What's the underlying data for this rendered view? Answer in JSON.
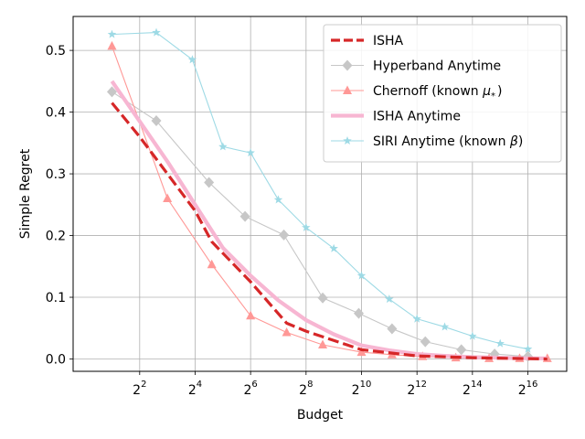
{
  "chart_data": {
    "type": "line",
    "xlabel": "Budget",
    "ylabel": "Simple Regret",
    "xscale": "log2",
    "xlim_log2": [
      -0.4,
      17.4
    ],
    "ylim": [
      -0.02,
      0.555
    ],
    "grid": true,
    "legend_position": "top-right",
    "x_ticks": [
      {
        "exp": 2,
        "base": "2",
        "sup": "2"
      },
      {
        "exp": 4,
        "base": "2",
        "sup": "4"
      },
      {
        "exp": 6,
        "base": "2",
        "sup": "6"
      },
      {
        "exp": 8,
        "base": "2",
        "sup": "8"
      },
      {
        "exp": 10,
        "base": "2",
        "sup": "10"
      },
      {
        "exp": 12,
        "base": "2",
        "sup": "12"
      },
      {
        "exp": 14,
        "base": "2",
        "sup": "14"
      },
      {
        "exp": 16,
        "base": "2",
        "sup": "16"
      }
    ],
    "y_ticks": [
      {
        "value": 0.0,
        "label": "0.0"
      },
      {
        "value": 0.1,
        "label": "0.1"
      },
      {
        "value": 0.2,
        "label": "0.2"
      },
      {
        "value": 0.3,
        "label": "0.3"
      },
      {
        "value": 0.4,
        "label": "0.4"
      },
      {
        "value": 0.5,
        "label": "0.5"
      }
    ],
    "series": [
      {
        "name": "ISHA",
        "color": "#d62728",
        "style": "dashed",
        "marker": "none",
        "points": [
          [
            1.0,
            0.415
          ],
          [
            2.0,
            0.36
          ],
          [
            3.0,
            0.3
          ],
          [
            4.0,
            0.24
          ],
          [
            4.6,
            0.19
          ],
          [
            6.0,
            0.125
          ],
          [
            7.3,
            0.058
          ],
          [
            8.0,
            0.045
          ],
          [
            10.0,
            0.015
          ],
          [
            12.0,
            0.005
          ],
          [
            14.0,
            0.002
          ],
          [
            16.7,
            0.0
          ]
        ]
      },
      {
        "name": "Hyperband Anytime",
        "color": "#c7c7c7",
        "style": "solid",
        "marker": "diamond",
        "points": [
          [
            1.0,
            0.433
          ],
          [
            2.6,
            0.386
          ],
          [
            4.5,
            0.286
          ],
          [
            5.8,
            0.231
          ],
          [
            7.2,
            0.201
          ],
          [
            8.6,
            0.099
          ],
          [
            9.9,
            0.074
          ],
          [
            11.1,
            0.049
          ],
          [
            12.3,
            0.028
          ],
          [
            13.6,
            0.015
          ],
          [
            14.8,
            0.008
          ],
          [
            16.0,
            0.004
          ]
        ]
      },
      {
        "name": "Chernoff (known μ*)",
        "legend_base": "Chernoff (known ",
        "legend_math": "μ",
        "legend_sub": "*",
        "legend_tail": ")",
        "color": "#ff9896",
        "style": "solid",
        "marker": "triangle",
        "points": [
          [
            1.0,
            0.507
          ],
          [
            3.0,
            0.26
          ],
          [
            4.6,
            0.153
          ],
          [
            6.0,
            0.07
          ],
          [
            7.3,
            0.043
          ],
          [
            8.6,
            0.023
          ],
          [
            10.0,
            0.011
          ],
          [
            11.1,
            0.007
          ],
          [
            12.2,
            0.004
          ],
          [
            13.4,
            0.002
          ],
          [
            14.6,
            0.001
          ],
          [
            15.7,
            0.001
          ],
          [
            16.7,
            0.001
          ]
        ]
      },
      {
        "name": "ISHA Anytime",
        "color": "#f7b6d2",
        "style": "thick",
        "marker": "none",
        "points": [
          [
            1.0,
            0.45
          ],
          [
            2.0,
            0.385
          ],
          [
            3.0,
            0.32
          ],
          [
            4.0,
            0.25
          ],
          [
            5.0,
            0.18
          ],
          [
            6.0,
            0.135
          ],
          [
            7.0,
            0.095
          ],
          [
            8.0,
            0.063
          ],
          [
            9.0,
            0.04
          ],
          [
            10.0,
            0.022
          ],
          [
            11.0,
            0.014
          ],
          [
            12.0,
            0.008
          ],
          [
            13.0,
            0.005
          ],
          [
            14.0,
            0.003
          ],
          [
            15.0,
            0.002
          ],
          [
            16.0,
            0.001
          ],
          [
            16.7,
            0.001
          ]
        ]
      },
      {
        "name": "SIRI Anytime (known β)",
        "legend_base": "SIRI Anytime (known ",
        "legend_math": "β",
        "legend_sub": "",
        "legend_tail": ")",
        "color": "#9edae5",
        "style": "solid",
        "marker": "star",
        "points": [
          [
            1.0,
            0.526
          ],
          [
            2.6,
            0.529
          ],
          [
            3.9,
            0.485
          ],
          [
            5.0,
            0.344
          ],
          [
            6.0,
            0.334
          ],
          [
            7.0,
            0.258
          ],
          [
            8.0,
            0.213
          ],
          [
            9.0,
            0.179
          ],
          [
            10.0,
            0.135
          ],
          [
            11.0,
            0.097
          ],
          [
            12.0,
            0.065
          ],
          [
            13.0,
            0.052
          ],
          [
            14.0,
            0.037
          ],
          [
            15.0,
            0.025
          ],
          [
            16.0,
            0.016
          ]
        ]
      }
    ]
  }
}
